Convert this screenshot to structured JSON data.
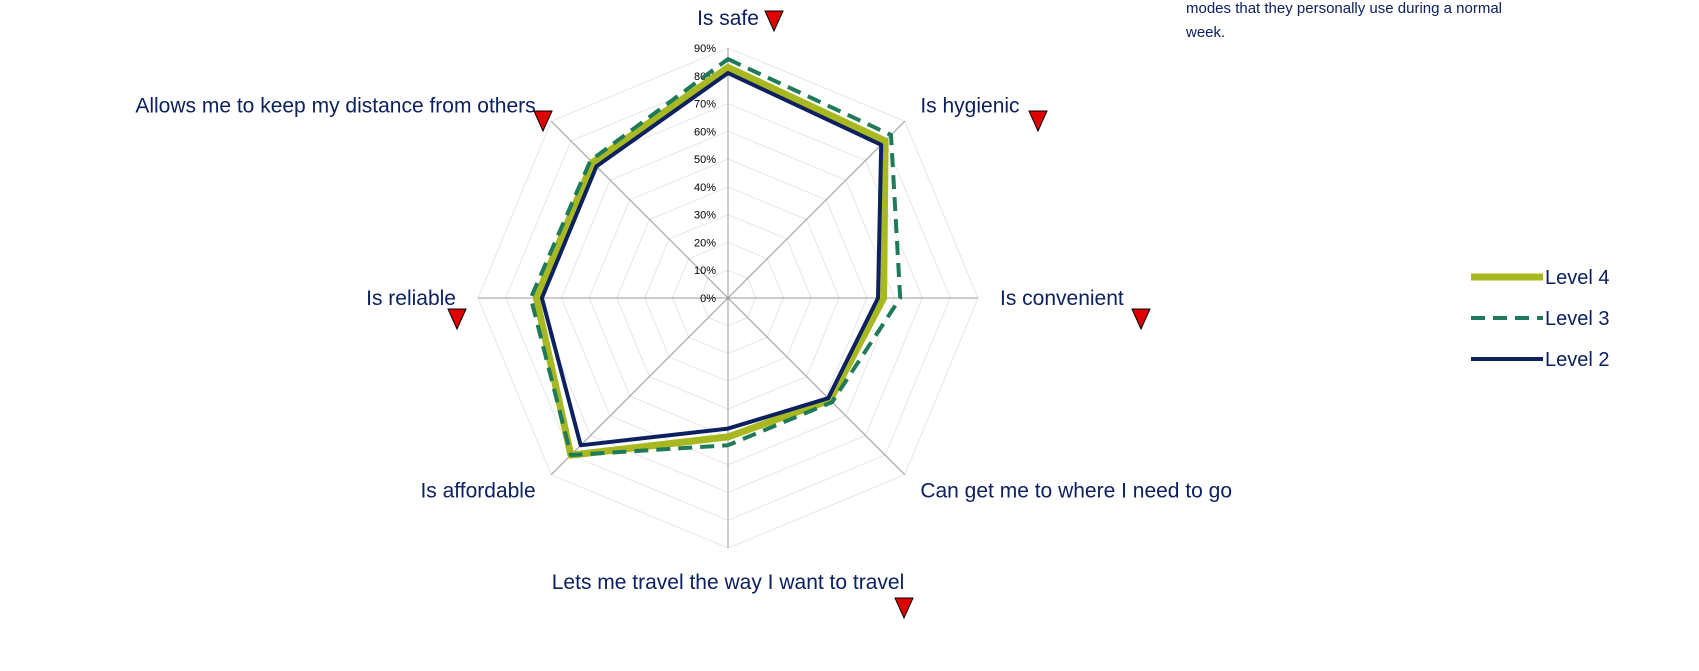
{
  "chart_data": {
    "type": "radar",
    "annotation": [
      "modes that they personally use during a normal",
      "week."
    ],
    "categories": [
      "Is safe",
      "Is hygienic",
      "Is convenient",
      "Can get me to where I need to go",
      "Lets me travel the way I want to travel",
      "Is affordable",
      "Is reliable",
      "Allows me to keep my distance from others"
    ],
    "series": [
      {
        "name": "Level 4",
        "color": "#a8b820",
        "values": [
          83,
          80,
          56,
          52,
          50,
          80,
          69,
          69
        ]
      },
      {
        "name": "Level 3",
        "color": "#1e7a58",
        "values": [
          86,
          83,
          62,
          53,
          53,
          80,
          71,
          70
        ]
      },
      {
        "name": "Level 2",
        "color": "#0d2060",
        "values": [
          81,
          78,
          54,
          51,
          47,
          75,
          67,
          67
        ]
      }
    ],
    "ylim": [
      0,
      90
    ],
    "yticks": [
      {
        "value": 0,
        "label": "0%"
      },
      {
        "value": 10,
        "label": "10%"
      },
      {
        "value": 20,
        "label": "20%"
      },
      {
        "value": 30,
        "label": "30%"
      },
      {
        "value": 40,
        "label": "40%"
      },
      {
        "value": 50,
        "label": "50%"
      },
      {
        "value": 60,
        "label": "60%"
      },
      {
        "value": 70,
        "label": "70%"
      },
      {
        "value": 80,
        "label": "80%"
      },
      {
        "value": 90,
        "label": "90%"
      }
    ],
    "grid": true,
    "legend": "right"
  }
}
